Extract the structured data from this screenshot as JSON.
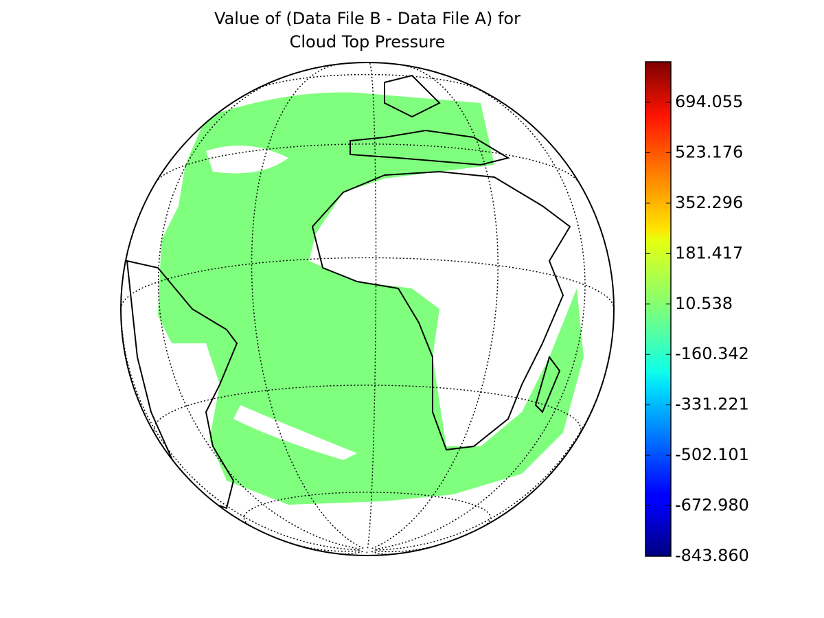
{
  "chart_data": {
    "type": "map",
    "title": [
      "Value of (Data File B - Data File A) for",
      "Cloud Top Pressure"
    ],
    "colormap": "jet",
    "clim": [
      -843.86,
      831.3
    ],
    "cticks": [
      {
        "value": -843.86,
        "label": "-843.860"
      },
      {
        "value": -672.98,
        "label": "-672.980"
      },
      -502.101,
      -331.221,
      -160.342,
      10.538,
      181.417,
      352.296,
      523.176,
      694.055
    ]
  }
}
